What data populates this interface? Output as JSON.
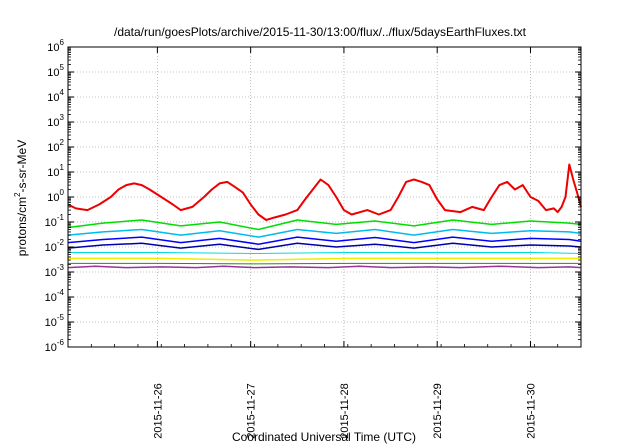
{
  "chart_data": {
    "type": "line",
    "title": "/data/run/goesPlots/archive/2015-11-30/13:00/flux/../flux/5daysEarthFluxes.txt",
    "xlabel": "Coordinated Universal Time (UTC)",
    "ylabel": {
      "base": "protons/cm",
      "sup": "2",
      "rest": "-s-sr-MeV"
    },
    "y_scale": "log",
    "ylim": [
      1e-06,
      1000000.0
    ],
    "y_ticks": [
      {
        "value": 1e-06,
        "base": "10",
        "exp": "-6"
      },
      {
        "value": 1e-05,
        "base": "10",
        "exp": "-5"
      },
      {
        "value": 0.0001,
        "base": "10",
        "exp": "-4"
      },
      {
        "value": 0.001,
        "base": "10",
        "exp": "-3"
      },
      {
        "value": 0.01,
        "base": "10",
        "exp": "-2"
      },
      {
        "value": 0.1,
        "base": "10",
        "exp": "-1"
      },
      {
        "value": 1.0,
        "base": "10",
        "exp": "0"
      },
      {
        "value": 10.0,
        "base": "10",
        "exp": "1"
      },
      {
        "value": 100.0,
        "base": "10",
        "exp": "2"
      },
      {
        "value": 1000.0,
        "base": "10",
        "exp": "3"
      },
      {
        "value": 10000.0,
        "base": "10",
        "exp": "4"
      },
      {
        "value": 100000.0,
        "base": "10",
        "exp": "5"
      },
      {
        "value": 1000000.0,
        "base": "10",
        "exp": "6"
      }
    ],
    "xlim": [
      "2015-11-25T01:00",
      "2015-11-30T13:00"
    ],
    "x_ticks": [
      "2015-11-26",
      "2015-11-27",
      "2015-11-28",
      "2015-11-29",
      "2015-11-30"
    ],
    "grid": true,
    "series": [
      {
        "color": "#ee0000",
        "width": 2,
        "x": [
          "2015-11-25T01:00",
          "2015-11-25T03:00",
          "2015-11-25T06:00",
          "2015-11-25T09:00",
          "2015-11-25T12:00",
          "2015-11-25T14:00",
          "2015-11-25T16:00",
          "2015-11-25T18:00",
          "2015-11-25T20:00",
          "2015-11-25T22:00",
          "2015-11-26T01:00",
          "2015-11-26T04:00",
          "2015-11-26T06:00",
          "2015-11-26T09:00",
          "2015-11-26T12:00",
          "2015-11-26T14:00",
          "2015-11-26T16:00",
          "2015-11-26T18:00",
          "2015-11-26T20:00",
          "2015-11-26T22:00",
          "2015-11-27T00:00",
          "2015-11-27T02:00",
          "2015-11-27T04:00",
          "2015-11-27T06:00",
          "2015-11-27T09:00",
          "2015-11-27T12:00",
          "2015-11-27T14:00",
          "2015-11-27T16:00",
          "2015-11-27T18:00",
          "2015-11-27T20:00",
          "2015-11-27T22:00",
          "2015-11-28T00:00",
          "2015-11-28T02:00",
          "2015-11-28T06:00",
          "2015-11-28T09:00",
          "2015-11-28T12:00",
          "2015-11-28T14:00",
          "2015-11-28T16:00",
          "2015-11-28T18:00",
          "2015-11-28T20:00",
          "2015-11-28T22:00",
          "2015-11-29T00:00",
          "2015-11-29T02:00",
          "2015-11-29T06:00",
          "2015-11-29T09:00",
          "2015-11-29T12:00",
          "2015-11-29T14:00",
          "2015-11-29T16:00",
          "2015-11-29T18:00",
          "2015-11-29T20:00",
          "2015-11-29T22:00",
          "2015-11-30T00:00",
          "2015-11-30T02:00",
          "2015-11-30T04:00",
          "2015-11-30T06:00",
          "2015-11-30T07:00",
          "2015-11-30T08:00",
          "2015-11-30T09:00",
          "2015-11-30T10:00",
          "2015-11-30T11:00",
          "2015-11-30T12:00",
          "2015-11-30T13:00"
        ],
        "y": [
          0.5,
          0.35,
          0.3,
          0.5,
          1.0,
          2.0,
          3.0,
          3.5,
          3.0,
          2.0,
          1.0,
          0.5,
          0.3,
          0.4,
          1.0,
          2.0,
          3.5,
          4.0,
          2.5,
          1.5,
          0.5,
          0.2,
          0.12,
          0.15,
          0.2,
          0.3,
          0.8,
          2.0,
          5.0,
          3.0,
          1.0,
          0.3,
          0.2,
          0.3,
          0.2,
          0.3,
          1.0,
          4.0,
          5.0,
          4.0,
          3.0,
          0.8,
          0.3,
          0.25,
          0.4,
          0.3,
          1.0,
          3.0,
          4.0,
          2.0,
          3.0,
          1.0,
          0.7,
          0.3,
          0.35,
          0.25,
          0.4,
          1.0,
          20.0,
          5.0,
          1.5,
          0.4
        ]
      },
      {
        "color": "#00dd00",
        "width": 1.5,
        "x": [
          "2015-11-25T01:00",
          "2015-11-25T10:00",
          "2015-11-25T20:00",
          "2015-11-26T06:00",
          "2015-11-26T16:00",
          "2015-11-27T02:00",
          "2015-11-27T12:00",
          "2015-11-27T22:00",
          "2015-11-28T08:00",
          "2015-11-28T18:00",
          "2015-11-29T04:00",
          "2015-11-29T14:00",
          "2015-11-30T00:00",
          "2015-11-30T10:00",
          "2015-11-30T13:00"
        ],
        "y": [
          0.06,
          0.09,
          0.12,
          0.07,
          0.1,
          0.05,
          0.12,
          0.08,
          0.11,
          0.07,
          0.12,
          0.08,
          0.11,
          0.09,
          0.08
        ]
      },
      {
        "color": "#00bbee",
        "width": 1.5,
        "x": [
          "2015-11-25T01:00",
          "2015-11-25T10:00",
          "2015-11-25T20:00",
          "2015-11-26T06:00",
          "2015-11-26T16:00",
          "2015-11-27T02:00",
          "2015-11-27T12:00",
          "2015-11-27T22:00",
          "2015-11-28T08:00",
          "2015-11-28T18:00",
          "2015-11-29T04:00",
          "2015-11-29T14:00",
          "2015-11-30T00:00",
          "2015-11-30T10:00",
          "2015-11-30T13:00"
        ],
        "y": [
          0.03,
          0.04,
          0.05,
          0.03,
          0.045,
          0.025,
          0.05,
          0.035,
          0.05,
          0.03,
          0.05,
          0.035,
          0.045,
          0.04,
          0.035
        ]
      },
      {
        "color": "#0000ff",
        "width": 1.5,
        "x": [
          "2015-11-25T01:00",
          "2015-11-25T10:00",
          "2015-11-25T20:00",
          "2015-11-26T06:00",
          "2015-11-26T16:00",
          "2015-11-27T02:00",
          "2015-11-27T12:00",
          "2015-11-27T22:00",
          "2015-11-28T08:00",
          "2015-11-28T18:00",
          "2015-11-29T04:00",
          "2015-11-29T14:00",
          "2015-11-30T00:00",
          "2015-11-30T10:00",
          "2015-11-30T13:00"
        ],
        "y": [
          0.015,
          0.02,
          0.025,
          0.015,
          0.022,
          0.013,
          0.025,
          0.017,
          0.024,
          0.015,
          0.025,
          0.017,
          0.022,
          0.02,
          0.017
        ]
      },
      {
        "color": "#0000aa",
        "width": 1.5,
        "x": [
          "2015-11-25T01:00",
          "2015-11-25T10:00",
          "2015-11-25T20:00",
          "2015-11-26T06:00",
          "2015-11-26T16:00",
          "2015-11-27T02:00",
          "2015-11-27T12:00",
          "2015-11-27T22:00",
          "2015-11-28T08:00",
          "2015-11-28T18:00",
          "2015-11-29T04:00",
          "2015-11-29T14:00",
          "2015-11-30T00:00",
          "2015-11-30T10:00",
          "2015-11-30T13:00"
        ],
        "y": [
          0.009,
          0.012,
          0.014,
          0.009,
          0.013,
          0.008,
          0.014,
          0.01,
          0.013,
          0.009,
          0.014,
          0.01,
          0.012,
          0.011,
          0.01
        ]
      },
      {
        "color": "#00dddd",
        "width": 1,
        "x": [
          "2015-11-25T01:00",
          "2015-11-26T01:00",
          "2015-11-27T01:00",
          "2015-11-28T01:00",
          "2015-11-29T01:00",
          "2015-11-30T01:00",
          "2015-11-30T13:00"
        ],
        "y": [
          0.006,
          0.006,
          0.0055,
          0.006,
          0.006,
          0.006,
          0.0055
        ]
      },
      {
        "color": "#eeee00",
        "width": 1.5,
        "x": [
          "2015-11-25T01:00",
          "2015-11-26T01:00",
          "2015-11-27T01:00",
          "2015-11-28T01:00",
          "2015-11-29T01:00",
          "2015-11-30T01:00",
          "2015-11-30T13:00"
        ],
        "y": [
          0.0035,
          0.0035,
          0.003,
          0.0035,
          0.0035,
          0.0035,
          0.0035
        ]
      },
      {
        "color": "#228b22",
        "width": 1,
        "x": [
          "2015-11-25T01:00",
          "2015-11-26T01:00",
          "2015-11-27T01:00",
          "2015-11-28T01:00",
          "2015-11-29T01:00",
          "2015-11-30T01:00",
          "2015-11-30T13:00"
        ],
        "y": [
          0.0022,
          0.0022,
          0.0021,
          0.0022,
          0.0022,
          0.0022,
          0.0022
        ]
      },
      {
        "color": "#993399",
        "width": 1.5,
        "x": [
          "2015-11-25T01:00",
          "2015-11-25T08:00",
          "2015-11-25T16:00",
          "2015-11-26T01:00",
          "2015-11-26T10:00",
          "2015-11-26T17:00",
          "2015-11-27T01:00",
          "2015-11-27T10:00",
          "2015-11-27T20:00",
          "2015-11-28T04:00",
          "2015-11-28T12:00",
          "2015-11-28T22:00",
          "2015-11-29T06:00",
          "2015-11-29T16:00",
          "2015-11-30T02:00",
          "2015-11-30T10:00",
          "2015-11-30T13:00"
        ],
        "y": [
          0.0015,
          0.0017,
          0.0015,
          0.0016,
          0.0015,
          0.0017,
          0.0015,
          0.0016,
          0.0015,
          0.0017,
          0.0015,
          0.0016,
          0.0015,
          0.0017,
          0.0015,
          0.0016,
          0.0015
        ]
      }
    ]
  }
}
